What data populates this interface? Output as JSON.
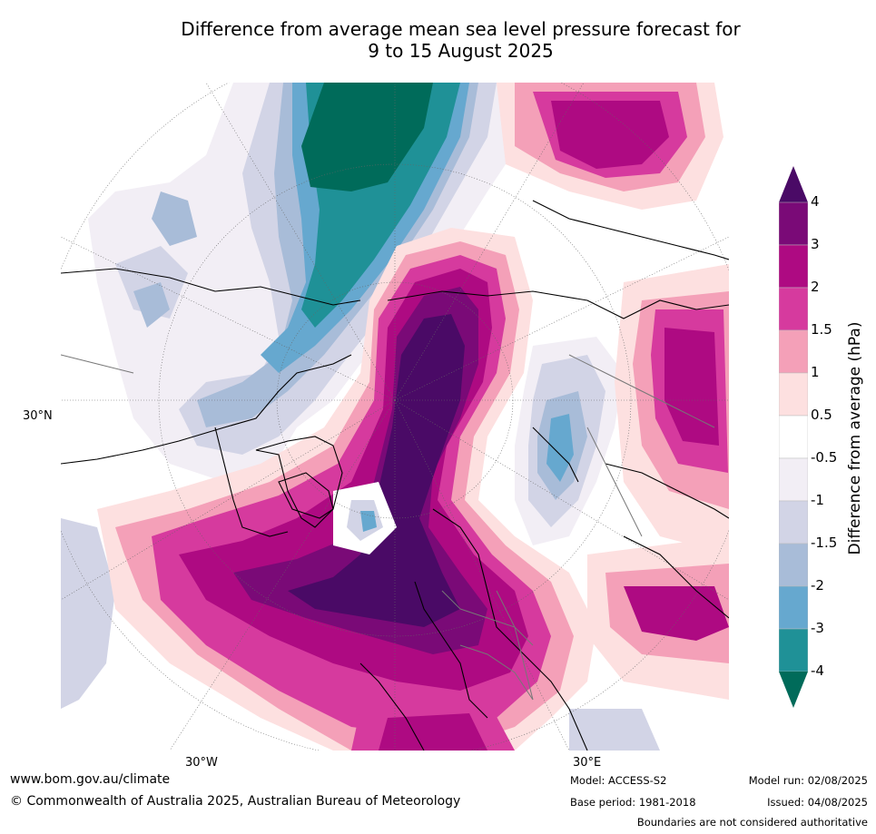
{
  "title_line1": "Difference from average mean sea level pressure forecast for",
  "title_line2": "9 to 15 August 2025",
  "map": {
    "projection": "polar-stereographic",
    "lat_label": "30°N",
    "lon_labels": {
      "west": "30°W",
      "east": "30°E"
    }
  },
  "colorbar": {
    "title": "Difference from average (hPa)",
    "ticks": [
      "4",
      "3",
      "2",
      "1.5",
      "1",
      "0.5",
      "-0.5",
      "-1",
      "-1.5",
      "-2",
      "-3",
      "-4"
    ],
    "bins": [
      {
        "from": 3,
        "to": 4,
        "color": "#7a0a77"
      },
      {
        "from": 2,
        "to": 3,
        "color": "#ae0a82"
      },
      {
        "from": 1.5,
        "to": 2,
        "color": "#d63a9e"
      },
      {
        "from": 1,
        "to": 1.5,
        "color": "#f4a0b8"
      },
      {
        "from": 0.5,
        "to": 1,
        "color": "#fde0e0"
      },
      {
        "from": -0.5,
        "to": 0.5,
        "color": "#ffffff"
      },
      {
        "from": -1,
        "to": -0.5,
        "color": "#f2eef5"
      },
      {
        "from": -1.5,
        "to": -1,
        "color": "#d2d4e6"
      },
      {
        "from": -2,
        "to": -1.5,
        "color": "#a8bcd8"
      },
      {
        "from": -3,
        "to": -2,
        "color": "#66a8cf"
      },
      {
        "from": -4,
        "to": -3,
        "color": "#1f9197"
      }
    ],
    "over_color": "#4a0a66",
    "under_color": "#006b5a"
  },
  "footer": {
    "url": "www.bom.gov.au/climate",
    "copyright": "© Commonwealth of Australia 2025, Australian Bureau of Meteorology",
    "model": "Model: ACCESS-S2",
    "base_period": "Base period: 1981-2018",
    "model_run": "Model run: 02/08/2025",
    "issued": "Issued: 04/08/2025",
    "boundaries_note": "Boundaries are not considered authoritative"
  }
}
